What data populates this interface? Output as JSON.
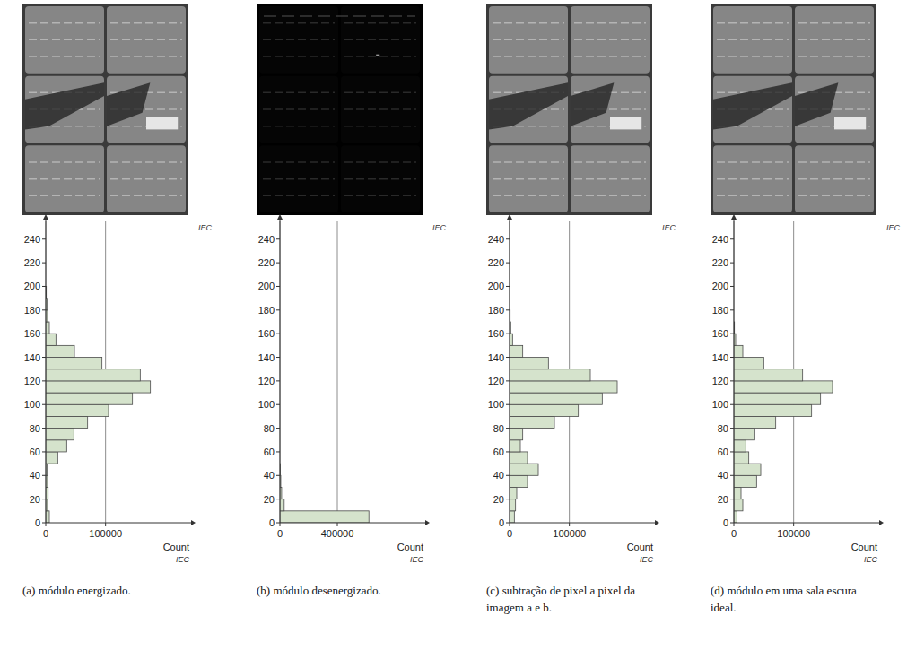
{
  "chart_data": [
    {
      "type": "histogram",
      "orientation": "horizontal",
      "title": "(a) módulo energizado.",
      "xlabel": "Count",
      "annotations": [
        "IEC",
        "IEC"
      ],
      "bins": [
        0,
        10,
        20,
        30,
        40,
        50,
        60,
        70,
        80,
        90,
        100,
        110,
        120,
        130,
        140,
        150,
        160,
        170,
        180,
        190,
        200,
        210,
        220,
        230,
        240,
        250
      ],
      "values": [
        6000,
        3000,
        4000,
        3000,
        2000,
        20000,
        35000,
        47000,
        70000,
        105000,
        145000,
        175000,
        158000,
        94000,
        48000,
        17000,
        6000,
        3000,
        2000,
        1000,
        0,
        0,
        0,
        0,
        0
      ],
      "xlim": [
        0,
        240000
      ],
      "xticks": [
        0,
        100000
      ],
      "ylim": [
        0,
        255
      ],
      "yticks": [
        0,
        20,
        40,
        60,
        80,
        100,
        120,
        140,
        160,
        180,
        200,
        220,
        240
      ],
      "grid": true,
      "color": "#d5e3cc"
    },
    {
      "type": "histogram",
      "orientation": "horizontal",
      "title": "(b) módulo desenergizado.",
      "xlabel": "Count",
      "annotations": [
        "IEC",
        "IEC"
      ],
      "bins": [
        0,
        10,
        20,
        30,
        40,
        50,
        60,
        70,
        80,
        90,
        100,
        110,
        120,
        130,
        140,
        150,
        160,
        170,
        180,
        190,
        200,
        210,
        220,
        230,
        240,
        250
      ],
      "values": [
        620000,
        30000,
        12000,
        6000,
        3000,
        0,
        0,
        0,
        0,
        0,
        0,
        0,
        0,
        0,
        0,
        0,
        0,
        0,
        0,
        0,
        0,
        0,
        0,
        0,
        0
      ],
      "xlim": [
        0,
        1000000
      ],
      "xticks": [
        0,
        400000
      ],
      "ylim": [
        0,
        255
      ],
      "yticks": [
        0,
        20,
        40,
        60,
        80,
        100,
        120,
        140,
        160,
        180,
        200,
        220,
        240
      ],
      "grid": true,
      "color": "#d5e3cc"
    },
    {
      "type": "histogram",
      "orientation": "horizontal",
      "title": "(c) subtração de pixel a pixel da imagem a e b.",
      "xlabel": "Count",
      "annotations": [
        "IEC",
        "IEC"
      ],
      "bins": [
        0,
        10,
        20,
        30,
        40,
        50,
        60,
        70,
        80,
        90,
        100,
        110,
        120,
        130,
        140,
        150,
        160,
        170,
        180,
        190,
        200,
        210,
        220,
        230,
        240,
        250
      ],
      "values": [
        8000,
        10000,
        12000,
        30000,
        48000,
        30000,
        18000,
        22000,
        75000,
        115000,
        155000,
        180000,
        135000,
        65000,
        22000,
        5000,
        2000,
        1000,
        0,
        0,
        0,
        0,
        0,
        0,
        0
      ],
      "xlim": [
        0,
        240000
      ],
      "xticks": [
        0,
        100000
      ],
      "ylim": [
        0,
        255
      ],
      "yticks": [
        0,
        20,
        40,
        60,
        80,
        100,
        120,
        140,
        160,
        180,
        200,
        220,
        240
      ],
      "grid": true,
      "color": "#d5e3cc"
    },
    {
      "type": "histogram",
      "orientation": "horizontal",
      "title": "(d) módulo em uma sala escura ideal.",
      "xlabel": "Count",
      "annotations": [
        "IEC",
        "IEC"
      ],
      "bins": [
        0,
        10,
        20,
        30,
        40,
        50,
        60,
        70,
        80,
        90,
        100,
        110,
        120,
        130,
        140,
        150,
        160,
        170,
        180,
        190,
        200,
        210,
        220,
        230,
        240,
        250
      ],
      "values": [
        5000,
        15000,
        12000,
        38000,
        45000,
        25000,
        20000,
        35000,
        70000,
        130000,
        145000,
        165000,
        115000,
        50000,
        15000,
        3000,
        1000,
        0,
        0,
        0,
        0,
        0,
        0,
        0,
        0
      ],
      "xlim": [
        0,
        240000
      ],
      "xticks": [
        0,
        100000
      ],
      "ylim": [
        0,
        255
      ],
      "yticks": [
        0,
        20,
        40,
        60,
        80,
        100,
        120,
        140,
        160,
        180,
        200,
        220,
        240
      ],
      "grid": true,
      "color": "#d5e3cc"
    }
  ]
}
